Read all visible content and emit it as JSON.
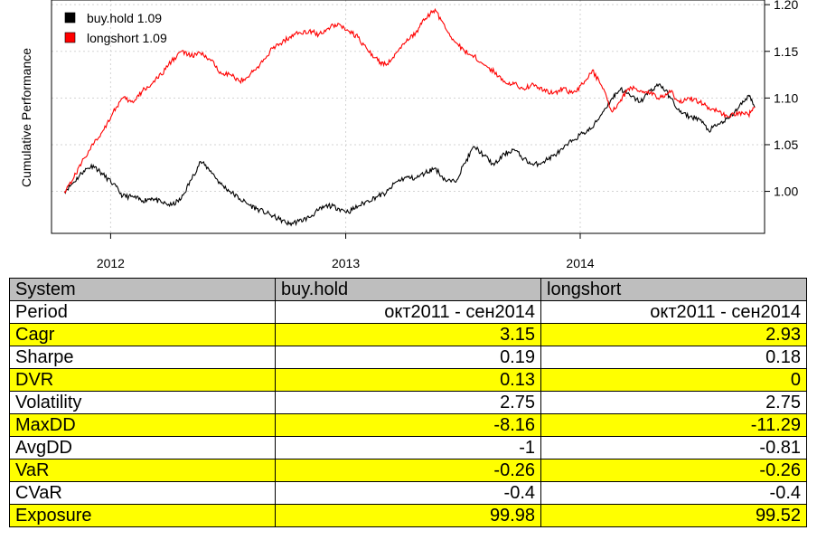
{
  "chart_data": {
    "type": "line",
    "title": "",
    "xlabel": "",
    "ylabel": "Cumulative Performance",
    "xlim": [
      "2011-10-01",
      "2014-10-15"
    ],
    "ylim": [
      0.955,
      1.205
    ],
    "x_ticks": [
      "2012",
      "2013",
      "2014"
    ],
    "y_ticks": [
      "1.00",
      "1.05",
      "1.10",
      "1.15",
      "1.20"
    ],
    "y_axis_side": "right",
    "grid": true,
    "legend_position": "top-left",
    "legend": [
      "buy.hold 1.09",
      "longshort 1.09"
    ],
    "series": [
      {
        "name": "buy.hold",
        "color": "#000000",
        "points": [
          [
            "2011-10-21",
            1.0
          ],
          [
            "2011-11-05",
            1.01
          ],
          [
            "2011-11-20",
            1.022
          ],
          [
            "2011-12-05",
            1.028
          ],
          [
            "2011-12-20",
            1.018
          ],
          [
            "2012-01-05",
            1.008
          ],
          [
            "2012-01-20",
            0.995
          ],
          [
            "2012-02-05",
            0.994
          ],
          [
            "2012-02-20",
            0.99
          ],
          [
            "2012-03-05",
            0.993
          ],
          [
            "2012-03-20",
            0.988
          ],
          [
            "2012-04-05",
            0.985
          ],
          [
            "2012-04-20",
            0.992
          ],
          [
            "2012-05-05",
            1.012
          ],
          [
            "2012-05-20",
            1.032
          ],
          [
            "2012-06-05",
            1.022
          ],
          [
            "2012-06-20",
            1.008
          ],
          [
            "2012-07-05",
            1.0
          ],
          [
            "2012-07-20",
            0.992
          ],
          [
            "2012-08-05",
            0.985
          ],
          [
            "2012-08-20",
            0.98
          ],
          [
            "2012-09-05",
            0.975
          ],
          [
            "2012-09-20",
            0.97
          ],
          [
            "2012-10-05",
            0.965
          ],
          [
            "2012-10-20",
            0.968
          ],
          [
            "2012-11-05",
            0.972
          ],
          [
            "2012-11-20",
            0.98
          ],
          [
            "2012-12-05",
            0.985
          ],
          [
            "2012-12-20",
            0.982
          ],
          [
            "2013-01-05",
            0.978
          ],
          [
            "2013-01-20",
            0.984
          ],
          [
            "2013-02-05",
            0.99
          ],
          [
            "2013-02-20",
            0.995
          ],
          [
            "2013-03-05",
            0.998
          ],
          [
            "2013-03-20",
            1.01
          ],
          [
            "2013-04-05",
            1.015
          ],
          [
            "2013-04-20",
            1.014
          ],
          [
            "2013-05-05",
            1.02
          ],
          [
            "2013-05-20",
            1.025
          ],
          [
            "2013-06-05",
            1.012
          ],
          [
            "2013-06-20",
            1.01
          ],
          [
            "2013-07-05",
            1.03
          ],
          [
            "2013-07-20",
            1.048
          ],
          [
            "2013-08-05",
            1.038
          ],
          [
            "2013-08-20",
            1.028
          ],
          [
            "2013-09-05",
            1.04
          ],
          [
            "2013-09-20",
            1.045
          ],
          [
            "2013-10-05",
            1.035
          ],
          [
            "2013-10-20",
            1.028
          ],
          [
            "2013-11-05",
            1.032
          ],
          [
            "2013-11-20",
            1.038
          ],
          [
            "2013-12-05",
            1.045
          ],
          [
            "2013-12-20",
            1.055
          ],
          [
            "2014-01-05",
            1.062
          ],
          [
            "2014-01-20",
            1.068
          ],
          [
            "2014-02-05",
            1.085
          ],
          [
            "2014-02-20",
            1.1
          ],
          [
            "2014-03-05",
            1.11
          ],
          [
            "2014-03-20",
            1.102
          ],
          [
            "2014-04-05",
            1.096
          ],
          [
            "2014-04-20",
            1.108
          ],
          [
            "2014-05-05",
            1.115
          ],
          [
            "2014-05-20",
            1.102
          ],
          [
            "2014-06-05",
            1.085
          ],
          [
            "2014-06-20",
            1.08
          ],
          [
            "2014-07-05",
            1.078
          ],
          [
            "2014-07-20",
            1.065
          ],
          [
            "2014-08-05",
            1.072
          ],
          [
            "2014-08-20",
            1.078
          ],
          [
            "2014-09-05",
            1.09
          ],
          [
            "2014-09-20",
            1.103
          ],
          [
            "2014-09-30",
            1.09
          ]
        ]
      },
      {
        "name": "longshort",
        "color": "#ff0000",
        "points": [
          [
            "2011-10-21",
            1.0
          ],
          [
            "2011-11-05",
            1.015
          ],
          [
            "2011-11-20",
            1.035
          ],
          [
            "2011-12-05",
            1.05
          ],
          [
            "2011-12-20",
            1.065
          ],
          [
            "2012-01-05",
            1.085
          ],
          [
            "2012-01-20",
            1.1
          ],
          [
            "2012-02-05",
            1.095
          ],
          [
            "2012-02-20",
            1.108
          ],
          [
            "2012-03-05",
            1.115
          ],
          [
            "2012-03-20",
            1.125
          ],
          [
            "2012-04-05",
            1.14
          ],
          [
            "2012-04-20",
            1.15
          ],
          [
            "2012-05-05",
            1.145
          ],
          [
            "2012-05-20",
            1.148
          ],
          [
            "2012-06-05",
            1.14
          ],
          [
            "2012-06-20",
            1.128
          ],
          [
            "2012-07-05",
            1.125
          ],
          [
            "2012-07-20",
            1.118
          ],
          [
            "2012-08-05",
            1.125
          ],
          [
            "2012-08-20",
            1.135
          ],
          [
            "2012-09-05",
            1.15
          ],
          [
            "2012-09-20",
            1.158
          ],
          [
            "2012-10-05",
            1.165
          ],
          [
            "2012-10-20",
            1.17
          ],
          [
            "2012-11-05",
            1.172
          ],
          [
            "2012-11-20",
            1.168
          ],
          [
            "2012-12-05",
            1.175
          ],
          [
            "2012-12-20",
            1.18
          ],
          [
            "2013-01-05",
            1.172
          ],
          [
            "2013-01-20",
            1.165
          ],
          [
            "2013-02-05",
            1.15
          ],
          [
            "2013-02-20",
            1.14
          ],
          [
            "2013-03-05",
            1.135
          ],
          [
            "2013-03-20",
            1.148
          ],
          [
            "2013-04-05",
            1.16
          ],
          [
            "2013-04-20",
            1.17
          ],
          [
            "2013-05-05",
            1.185
          ],
          [
            "2013-05-20",
            1.195
          ],
          [
            "2013-06-05",
            1.175
          ],
          [
            "2013-06-20",
            1.16
          ],
          [
            "2013-07-05",
            1.15
          ],
          [
            "2013-07-20",
            1.145
          ],
          [
            "2013-08-05",
            1.135
          ],
          [
            "2013-08-20",
            1.128
          ],
          [
            "2013-09-05",
            1.118
          ],
          [
            "2013-09-20",
            1.115
          ],
          [
            "2013-10-05",
            1.11
          ],
          [
            "2013-10-20",
            1.115
          ],
          [
            "2013-11-05",
            1.108
          ],
          [
            "2013-11-20",
            1.105
          ],
          [
            "2013-12-05",
            1.11
          ],
          [
            "2013-12-20",
            1.105
          ],
          [
            "2014-01-05",
            1.115
          ],
          [
            "2014-01-20",
            1.13
          ],
          [
            "2014-02-05",
            1.11
          ],
          [
            "2014-02-20",
            1.085
          ],
          [
            "2014-03-05",
            1.098
          ],
          [
            "2014-03-20",
            1.112
          ],
          [
            "2014-04-05",
            1.108
          ],
          [
            "2014-04-20",
            1.105
          ],
          [
            "2014-05-05",
            1.1
          ],
          [
            "2014-05-20",
            1.108
          ],
          [
            "2014-06-05",
            1.095
          ],
          [
            "2014-06-20",
            1.1
          ],
          [
            "2014-07-05",
            1.096
          ],
          [
            "2014-07-20",
            1.09
          ],
          [
            "2014-08-05",
            1.085
          ],
          [
            "2014-08-20",
            1.08
          ],
          [
            "2014-09-05",
            1.085
          ],
          [
            "2014-09-20",
            1.082
          ],
          [
            "2014-09-30",
            1.09
          ]
        ]
      }
    ]
  },
  "table": {
    "header": [
      "System",
      "buy.hold",
      "longshort"
    ],
    "rows": [
      {
        "label": "Period",
        "buy_hold": "окт2011 - сен2014",
        "longshort": "окт2011 - сен2014",
        "highlight": false
      },
      {
        "label": "Cagr",
        "buy_hold": "3.15",
        "longshort": "2.93",
        "highlight": true
      },
      {
        "label": "Sharpe",
        "buy_hold": "0.19",
        "longshort": "0.18",
        "highlight": false
      },
      {
        "label": "DVR",
        "buy_hold": "0.13",
        "longshort": "0",
        "highlight": true
      },
      {
        "label": "Volatility",
        "buy_hold": "2.75",
        "longshort": "2.75",
        "highlight": false
      },
      {
        "label": "MaxDD",
        "buy_hold": "-8.16",
        "longshort": "-11.29",
        "highlight": true
      },
      {
        "label": "AvgDD",
        "buy_hold": "-1",
        "longshort": "-0.81",
        "highlight": false
      },
      {
        "label": "VaR",
        "buy_hold": "-0.26",
        "longshort": "-0.26",
        "highlight": true
      },
      {
        "label": "CVaR",
        "buy_hold": "-0.4",
        "longshort": "-0.4",
        "highlight": false
      },
      {
        "label": "Exposure",
        "buy_hold": "99.98",
        "longshort": "99.52",
        "highlight": true
      }
    ]
  },
  "colors": {
    "header_bg": "#bebebe",
    "highlight_bg": "#ffff00",
    "grid": "#d3d3d3"
  }
}
